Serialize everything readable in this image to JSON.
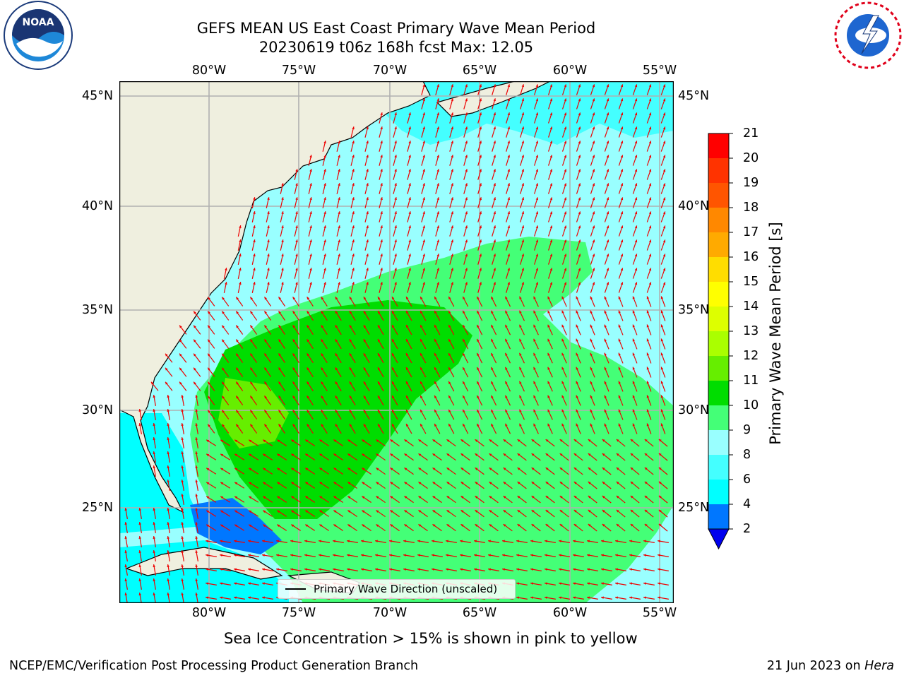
{
  "title_line1": "GEFS MEAN US East Coast Primary Wave Mean Period",
  "title_line2": "20230619 t06z 168h fcst   Max: 12.05",
  "logos": {
    "left": "NOAA",
    "right": "NATIONAL WEATHER SERVICE"
  },
  "lon_labels": [
    "80°W",
    "75°W",
    "70°W",
    "65°W",
    "60°W",
    "55°W"
  ],
  "lat_labels": [
    "45°N",
    "40°N",
    "35°N",
    "30°N",
    "25°N"
  ],
  "colorbar": {
    "label": "Primary Wave Mean Period [s]",
    "ticks": [
      "21",
      "20",
      "19",
      "18",
      "17",
      "16",
      "15",
      "14",
      "13",
      "12",
      "11",
      "10",
      "9",
      "8",
      "6",
      "4",
      "2"
    ],
    "colors": [
      "#ff0000",
      "#ff3300",
      "#ff5500",
      "#ff8800",
      "#ffaa00",
      "#ffdd00",
      "#ffff00",
      "#ddff00",
      "#aaff00",
      "#66ee00",
      "#00dd00",
      "#44ff77",
      "#99ffff",
      "#44ffff",
      "#00ffff",
      "#0077ff",
      "#0000ee"
    ]
  },
  "legend_text": "Primary Wave Direction (unscaled)",
  "note": "Sea Ice Concentration > 15% is shown in pink to yellow",
  "footer_left": "NCEP/EMC/Verification Post Processing Product Generation Branch",
  "footer_right_date": "21 Jun 2023 on",
  "footer_right_host": "Hera"
}
